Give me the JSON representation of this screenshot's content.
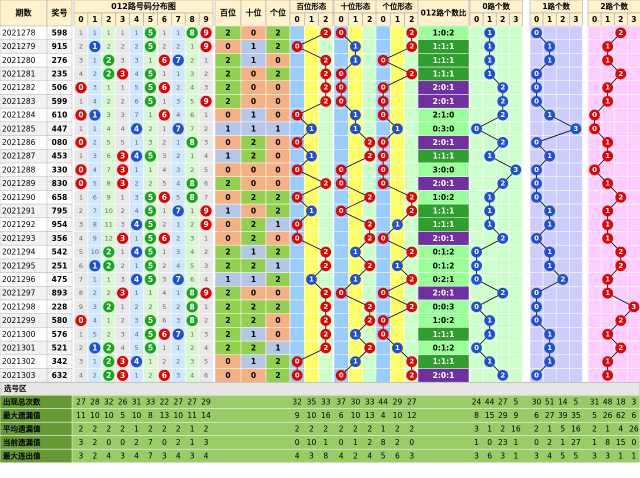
{
  "chart_data": {
    "type": "table",
    "header": {
      "issue": "期数",
      "prize": "奖号",
      "dist_group": "012路号码分布图",
      "hundreds": "百位",
      "tens": "十位",
      "units": "个位",
      "hform": "百位形态",
      "tform": "十位形态",
      "uform": "个位形态",
      "ratio": "012路个数比",
      "c0": "0路个数",
      "c1": "1路个数",
      "c2": "2路个数"
    },
    "sub_digits": [
      "0",
      "1",
      "2",
      "3",
      "4",
      "5",
      "6",
      "7",
      "8",
      "9"
    ],
    "sub_012": [
      "0",
      "1",
      "2"
    ],
    "sub_count": [
      "0",
      "1",
      "2",
      "3"
    ],
    "rows": [
      {
        "issue": "2021278",
        "prize": "598",
        "h": 2,
        "t": 0,
        "u": 2,
        "ratio": "1:0:2"
      },
      {
        "issue": "2021279",
        "prize": "915",
        "h": 0,
        "t": 1,
        "u": 2,
        "ratio": "1:1:1"
      },
      {
        "issue": "2021280",
        "prize": "276",
        "h": 2,
        "t": 1,
        "u": 0,
        "ratio": "1:1:1"
      },
      {
        "issue": "2021281",
        "prize": "235",
        "h": 2,
        "t": 0,
        "u": 2,
        "ratio": "1:1:1"
      },
      {
        "issue": "2021282",
        "prize": "506",
        "h": 2,
        "t": 0,
        "u": 0,
        "ratio": "2:0:1"
      },
      {
        "issue": "2021283",
        "prize": "599",
        "h": 2,
        "t": 0,
        "u": 0,
        "ratio": "2:0:1"
      },
      {
        "issue": "2021284",
        "prize": "610",
        "h": 0,
        "t": 1,
        "u": 0,
        "ratio": "2:1:0"
      },
      {
        "issue": "2021285",
        "prize": "447",
        "h": 1,
        "t": 1,
        "u": 1,
        "ratio": "0:3:0"
      },
      {
        "issue": "2021286",
        "prize": "080",
        "h": 0,
        "t": 2,
        "u": 0,
        "ratio": "2:0:1"
      },
      {
        "issue": "2021287",
        "prize": "453",
        "h": 1,
        "t": 2,
        "u": 0,
        "ratio": "1:1:1"
      },
      {
        "issue": "2021288",
        "prize": "330",
        "h": 0,
        "t": 0,
        "u": 0,
        "ratio": "3:0:0"
      },
      {
        "issue": "2021289",
        "prize": "830",
        "h": 2,
        "t": 0,
        "u": 0,
        "ratio": "2:0:1"
      },
      {
        "issue": "2021290",
        "prize": "658",
        "h": 0,
        "t": 2,
        "u": 2,
        "ratio": "1:0:2"
      },
      {
        "issue": "2021291",
        "prize": "795",
        "h": 1,
        "t": 0,
        "u": 2,
        "ratio": "1:1:1"
      },
      {
        "issue": "2021292",
        "prize": "954",
        "h": 0,
        "t": 2,
        "u": 1,
        "ratio": "1:1:1"
      },
      {
        "issue": "2021293",
        "prize": "356",
        "h": 0,
        "t": 2,
        "u": 0,
        "ratio": "2:0:1"
      },
      {
        "issue": "2021294",
        "prize": "542",
        "h": 2,
        "t": 1,
        "u": 2,
        "ratio": "0:1:2"
      },
      {
        "issue": "2021295",
        "prize": "251",
        "h": 2,
        "t": 2,
        "u": 1,
        "ratio": "0:1:2"
      },
      {
        "issue": "2021296",
        "prize": "475",
        "h": 1,
        "t": 1,
        "u": 2,
        "ratio": "0:2:1"
      },
      {
        "issue": "2021297",
        "prize": "893",
        "h": 2,
        "t": 0,
        "u": 0,
        "ratio": "2:0:1"
      },
      {
        "issue": "2021298",
        "prize": "228",
        "h": 2,
        "t": 2,
        "u": 2,
        "ratio": "0:0:3"
      },
      {
        "issue": "2021299",
        "prize": "580",
        "h": 2,
        "t": 2,
        "u": 0,
        "ratio": "1:0:2"
      },
      {
        "issue": "2021300",
        "prize": "576",
        "h": 2,
        "t": 1,
        "u": 0,
        "ratio": "1:1:1"
      },
      {
        "issue": "2021301",
        "prize": "521",
        "h": 2,
        "t": 2,
        "u": 1,
        "ratio": "0:1:2"
      },
      {
        "issue": "2021302",
        "prize": "342",
        "h": 0,
        "t": 1,
        "u": 2,
        "ratio": "1:1:1"
      },
      {
        "issue": "2021303",
        "prize": "632",
        "h": 0,
        "t": 0,
        "u": 2,
        "ratio": "2:0:1"
      }
    ],
    "select_label": "选号区",
    "stats": [
      {
        "label": "出现总次数",
        "digits": [
          "27",
          "28",
          "32",
          "26",
          "31",
          "33",
          "22",
          "27",
          "27",
          "29"
        ],
        "hform": [
          "32",
          "35",
          "33"
        ],
        "tform": [
          "37",
          "30",
          "33"
        ],
        "uform": [
          "44",
          "29",
          "27"
        ],
        "c0": [
          "24",
          "44",
          "27",
          "5"
        ],
        "c1": [
          "30",
          "51",
          "14",
          "5"
        ],
        "c2": [
          "31",
          "48",
          "18",
          "3"
        ]
      },
      {
        "label": "最大遗漏值",
        "digits": [
          "11",
          "10",
          "10",
          "5",
          "10",
          "8",
          "13",
          "10",
          "11",
          "14"
        ],
        "hform": [
          "9",
          "10",
          "16"
        ],
        "tform": [
          "6",
          "10",
          "13"
        ],
        "uform": [
          "4",
          "10",
          "12"
        ],
        "c0": [
          "8",
          "15",
          "29",
          "9"
        ],
        "c1": [
          "6",
          "27",
          "39",
          "35"
        ],
        "c2": [
          "5",
          "26",
          "62",
          "6"
        ]
      },
      {
        "label": "平均遗漏值",
        "digits": [
          "2",
          "2",
          "2",
          "2",
          "1",
          "2",
          "2",
          "2",
          "1",
          "2"
        ],
        "hform": [
          "2",
          "2",
          "2"
        ],
        "tform": [
          "2",
          "2",
          "2"
        ],
        "uform": [
          "1",
          "2",
          "2"
        ],
        "c0": [
          "3",
          "1",
          "2",
          "16"
        ],
        "c1": [
          "2",
          "1",
          "5",
          "16"
        ],
        "c2": [
          "2",
          "1",
          "4",
          "26"
        ]
      },
      {
        "label": "当前遗漏值",
        "digits": [
          "3",
          "2",
          "0",
          "0",
          "2",
          "7",
          "0",
          "2",
          "1",
          "3"
        ],
        "hform": [
          "0",
          "10",
          "1"
        ],
        "tform": [
          "0",
          "1",
          "2"
        ],
        "uform": [
          "8",
          "2",
          "0"
        ],
        "c0": [
          "1",
          "0",
          "23",
          "1"
        ],
        "c1": [
          "0",
          "2",
          "1",
          "27"
        ],
        "c2": [
          "1",
          "8",
          "15",
          "0"
        ]
      },
      {
        "label": "最大连出值",
        "digits": [
          "3",
          "2",
          "4",
          "3",
          "4",
          "7",
          "3",
          "4",
          "3",
          "4"
        ],
        "hform": [
          "4",
          "3",
          "8"
        ],
        "tform": [
          "4",
          "2",
          "4"
        ],
        "uform": [
          "5",
          "6",
          "3"
        ],
        "c0": [
          "3",
          "6",
          "3",
          "1"
        ],
        "c1": [
          "3",
          "4",
          "5",
          "5"
        ],
        "c2": [
          "3",
          "3",
          "1",
          "1"
        ]
      }
    ]
  }
}
